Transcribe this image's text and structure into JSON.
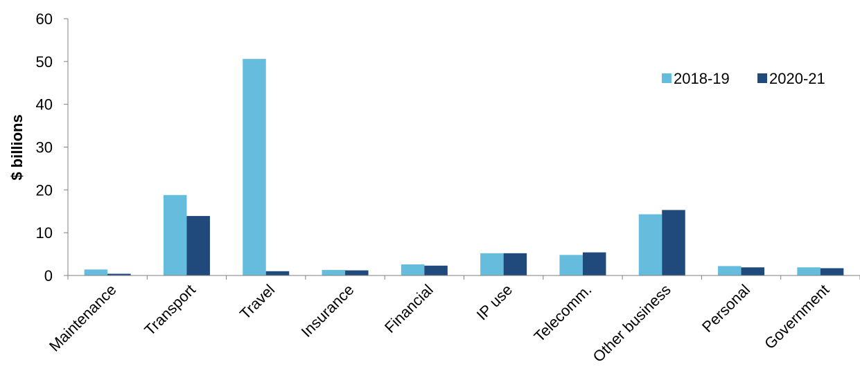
{
  "chart_data": {
    "type": "bar",
    "title": "",
    "xlabel": "",
    "ylabel": "$ billions",
    "ylim": [
      0,
      60
    ],
    "yticks": [
      0,
      10,
      20,
      30,
      40,
      50,
      60
    ],
    "grid": false,
    "legend_position": "top-right",
    "categories": [
      "Maintenance",
      "Transport",
      "Travel",
      "Insurance",
      "Financial",
      "IP use",
      "Telecomm.",
      "Other business",
      "Personal",
      "Government"
    ],
    "series": [
      {
        "name": "2018-19",
        "color": "#65BCDD",
        "values": [
          1.4,
          18.8,
          50.6,
          1.3,
          2.6,
          5.2,
          4.8,
          14.3,
          2.2,
          1.9
        ]
      },
      {
        "name": "2020-21",
        "color": "#204A7C",
        "values": [
          0.4,
          13.9,
          1.0,
          1.2,
          2.3,
          5.2,
          5.4,
          15.3,
          1.9,
          1.7
        ]
      }
    ]
  }
}
